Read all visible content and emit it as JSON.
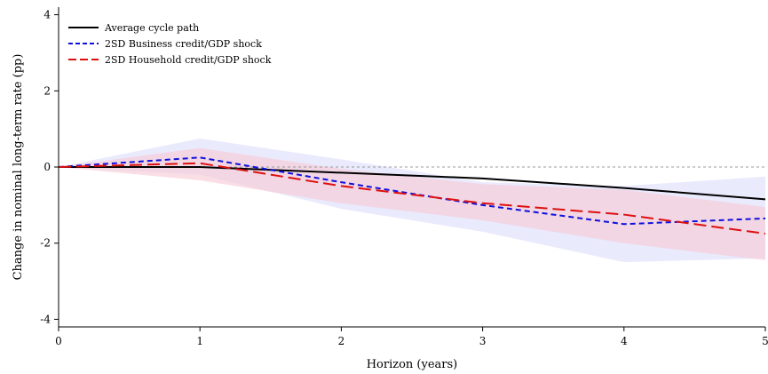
{
  "chart_data": {
    "type": "line",
    "title": "",
    "xlabel": "Horizon (years)",
    "ylabel": "Change in nominal long-term rate (pp)",
    "xlim": [
      0,
      5
    ],
    "ylim": [
      -4.2,
      4.2
    ],
    "x_ticks": [
      0,
      1,
      2,
      3,
      4,
      5
    ],
    "y_ticks": [
      -4,
      -2,
      0,
      2,
      4
    ],
    "x_tick_labels": [
      "0",
      "1",
      "2",
      "3",
      "4",
      "5"
    ],
    "y_tick_labels": [
      "-4",
      "-2",
      "0",
      "2",
      "4"
    ],
    "reference_line": {
      "y": 0,
      "style": "dashed",
      "color": "#999999"
    },
    "legend_position": "top-left",
    "x": [
      0,
      1,
      2,
      3,
      4,
      5
    ],
    "series": [
      {
        "name": "Average cycle path",
        "color": "#000000",
        "dash": "solid",
        "values": [
          0,
          0.0,
          -0.15,
          -0.3,
          -0.55,
          -0.85
        ],
        "band": null
      },
      {
        "name": "2SD Business credit/GDP shock",
        "color": "#1010dd",
        "dash": "short-dash",
        "values": [
          0,
          0.25,
          -0.4,
          -1.0,
          -1.5,
          -1.35
        ],
        "band": {
          "color": "#dcdcfb",
          "lower": [
            0,
            -0.2,
            -1.1,
            -1.7,
            -2.5,
            -2.4
          ],
          "upper": [
            0,
            0.75,
            0.2,
            -0.4,
            -0.5,
            -0.25
          ]
        }
      },
      {
        "name": "2SD Household credit/GDP shock",
        "color": "#dd1010",
        "dash": "long-dash",
        "values": [
          0,
          0.1,
          -0.5,
          -0.95,
          -1.25,
          -1.75
        ],
        "band": {
          "color": "#f7c8d4",
          "lower": [
            0,
            -0.35,
            -0.95,
            -1.4,
            -2.0,
            -2.45
          ],
          "upper": [
            0,
            0.5,
            -0.05,
            -0.45,
            -0.6,
            -1.05
          ]
        }
      }
    ]
  }
}
